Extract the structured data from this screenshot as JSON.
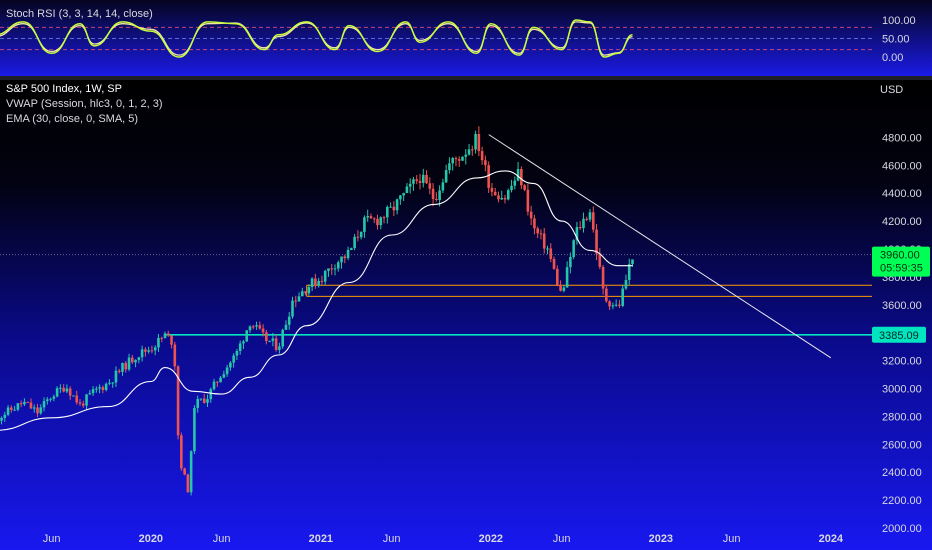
{
  "rsi_pane": {
    "legend": "Stoch RSI (3, 3, 14, 14, close)",
    "ticks": [
      "100.00",
      "50.00",
      "0.00"
    ],
    "tick_values": [
      100,
      50,
      0
    ],
    "bands": [
      80,
      50,
      20
    ]
  },
  "price_pane": {
    "legend": [
      "S&P 500 Index, 1W, SP",
      "VWAP (Session, hlc3, 0, 1, 2, 3)",
      "EMA (30, close, 0, SMA, 5)"
    ],
    "currency": "USD",
    "price_ticks": [
      4800,
      4600,
      4400,
      4200,
      4000,
      3800,
      3600,
      3400,
      3200,
      3000,
      2800,
      2600,
      2400,
      2200,
      2000
    ],
    "price_tick_labels": [
      "4800.00",
      "4600.00",
      "4400.00",
      "4200.00",
      "4000.00",
      "3800.00",
      "3600.00",
      "3400.00",
      "3200.00",
      "3000.00",
      "2800.00",
      "2600.00",
      "2400.00",
      "2200.00",
      "2000.00"
    ],
    "last_price_label": "3960.00",
    "countdown_label": "05:59:35",
    "support_label": "3385.09"
  },
  "time_axis": {
    "labels": [
      "Jun",
      "2020",
      "Jun",
      "2021",
      "Jun",
      "2022",
      "Jun",
      "2023",
      "Jun",
      "2024"
    ],
    "dates": [
      "2019-06",
      "2020-01",
      "2020-06",
      "2021-01",
      "2021-06",
      "2022-01",
      "2022-06",
      "2023-01",
      "2023-06",
      "2024-01"
    ]
  },
  "colors": {
    "up": "#26c6a8",
    "down": "#ef5350",
    "rsi_k": "#c6ff3a",
    "rsi_d": "#f5e6a8",
    "support": "#00e5c0",
    "zone": "#ff9800",
    "last_price_bg": "#00ff55"
  },
  "chart_data": {
    "type": "line",
    "title": "S&P 500 Index, 1W, SP",
    "ylabel": "USD",
    "ylim": [
      2000,
      4950
    ],
    "x_range": [
      "2019-02",
      "2024-04"
    ],
    "series": [
      {
        "name": "S&P 500 Index",
        "style": "candles",
        "x": [
          "2019-02",
          "2019-04",
          "2019-05",
          "2019-06",
          "2019-07",
          "2019-08",
          "2019-09",
          "2019-10",
          "2019-11",
          "2019-12",
          "2020-01",
          "2020-02",
          "2020-02-20",
          "2020-03",
          "2020-03-23",
          "2020-04",
          "2020-05",
          "2020-06",
          "2020-07",
          "2020-08",
          "2020-09",
          "2020-10",
          "2020-11",
          "2020-12",
          "2021-01",
          "2021-02",
          "2021-03",
          "2021-04",
          "2021-05",
          "2021-06",
          "2021-07",
          "2021-08",
          "2021-09",
          "2021-10",
          "2021-11",
          "2021-12",
          "2022-01",
          "2022-02",
          "2022-03",
          "2022-04",
          "2022-05",
          "2022-06",
          "2022-07",
          "2022-08",
          "2022-09",
          "2022-10",
          "2022-11"
        ],
        "values": [
          2780,
          2900,
          2830,
          2950,
          3020,
          2880,
          2980,
          3040,
          3150,
          3240,
          3290,
          3380,
          3330,
          2500,
          2240,
          2880,
          2940,
          3110,
          3240,
          3480,
          3360,
          3300,
          3630,
          3730,
          3790,
          3900,
          3970,
          4190,
          4210,
          4280,
          4400,
          4520,
          4360,
          4600,
          4680,
          4790,
          4430,
          4370,
          4550,
          4150,
          4000,
          3660,
          4120,
          4280,
          3650,
          3580,
          3960
        ]
      },
      {
        "name": "EMA (30, close, 0, SMA, 5)",
        "x": [
          "2019-02",
          "2019-06",
          "2019-10",
          "2020-01",
          "2020-02",
          "2020-04",
          "2020-06",
          "2020-08",
          "2020-10",
          "2020-12",
          "2021-03",
          "2021-06",
          "2021-09",
          "2021-12",
          "2022-02",
          "2022-04",
          "2022-06",
          "2022-08",
          "2022-10",
          "2022-11"
        ],
        "values": [
          2700,
          2790,
          2870,
          3050,
          3150,
          2980,
          2960,
          3080,
          3240,
          3450,
          3760,
          4100,
          4320,
          4510,
          4560,
          4470,
          4200,
          3990,
          3880,
          3880
        ]
      }
    ],
    "trendline": {
      "from": [
        "2021-12-27",
        4820
      ],
      "to": [
        "2024-01",
        3220
      ]
    },
    "support_line": {
      "start": "2020-02",
      "value": 3385.09
    },
    "zone": {
      "start": "2020-12",
      "low": 3660,
      "high": 3740
    },
    "stoch_rsi": {
      "x": [
        "2019-02",
        "2019-04",
        "2019-06",
        "2019-08",
        "2019-09",
        "2019-11",
        "2020-01",
        "2020-03",
        "2020-05",
        "2020-07",
        "2020-09",
        "2020-10",
        "2020-12",
        "2021-02",
        "2021-03",
        "2021-05",
        "2021-07",
        "2021-08",
        "2021-10",
        "2021-12",
        "2022-01",
        "2022-03",
        "2022-04",
        "2022-06",
        "2022-07",
        "2022-08",
        "2022-09",
        "2022-10",
        "2022-11"
      ],
      "k": [
        60,
        95,
        10,
        90,
        30,
        95,
        70,
        0,
        95,
        90,
        20,
        60,
        95,
        20,
        85,
        15,
        95,
        40,
        95,
        10,
        90,
        5,
        80,
        20,
        100,
        95,
        0,
        10,
        60
      ],
      "d": [
        55,
        90,
        15,
        85,
        35,
        90,
        75,
        5,
        90,
        92,
        25,
        55,
        92,
        25,
        80,
        20,
        90,
        45,
        90,
        15,
        85,
        10,
        75,
        25,
        95,
        92,
        5,
        12,
        55
      ]
    }
  }
}
